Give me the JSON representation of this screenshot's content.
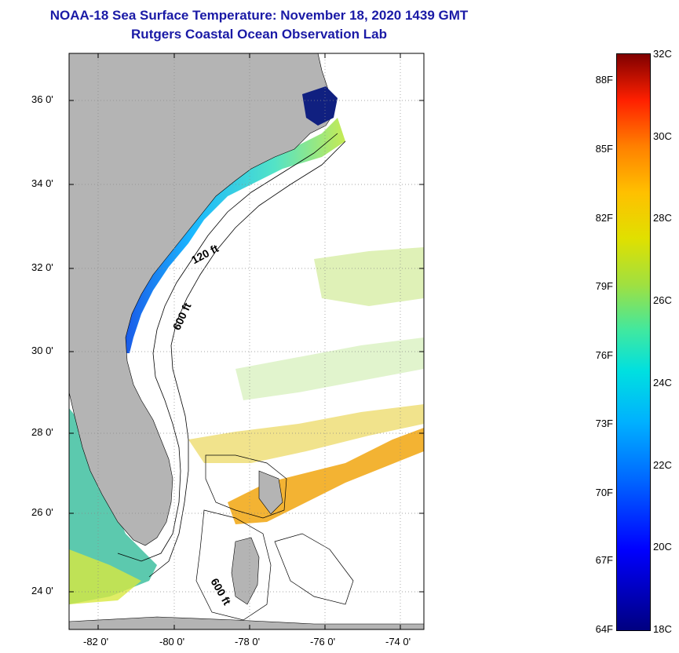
{
  "title": {
    "line1": "NOAA-18 Sea Surface Temperature:  November 18, 2020 1439 GMT",
    "line2": "Rutgers Coastal Ocean Observation Lab"
  },
  "map": {
    "lat_ticks": [
      "36 0'",
      "34 0'",
      "32 0'",
      "30 0'",
      "28 0'",
      "26 0'",
      "24 0'"
    ],
    "lon_ticks": [
      "-82 0'",
      "-80 0'",
      "-78 0'",
      "-76 0'",
      "-74 0'"
    ],
    "contour_labels": [
      "120 ft",
      "600 ft",
      "600 ft"
    ],
    "colors": {
      "land": "#b4b4b4",
      "ocean_blank": "#ffffff",
      "grid": "#888888"
    }
  },
  "colorbar": {
    "celsius": [
      "32C",
      "30C",
      "28C",
      "26C",
      "24C",
      "22C",
      "20C",
      "18C"
    ],
    "fahrenheit": [
      "88F",
      "85F",
      "82F",
      "79F",
      "76F",
      "73F",
      "70F",
      "67F",
      "64F"
    ]
  }
}
